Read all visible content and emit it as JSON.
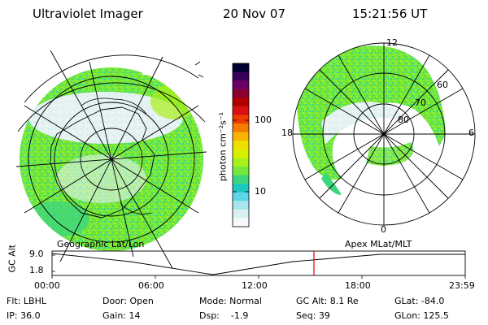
{
  "header": {
    "instrument": "Ultraviolet Imager",
    "date": "20 Nov 07",
    "time": "15:21:56 UT"
  },
  "colorbar": {
    "label": "photon cm⁻²s⁻¹",
    "ticks": [
      "100",
      "10"
    ],
    "colors": [
      "#000033",
      "#3a005a",
      "#6a0066",
      "#8a0033",
      "#b00000",
      "#d81010",
      "#ef3b00",
      "#f47c00",
      "#f8b400",
      "#f0df00",
      "#d8f000",
      "#a8f01a",
      "#74e83c",
      "#3ed67c",
      "#1ec8c2",
      "#5cd6e4",
      "#a6e6ee",
      "#d8f2f4",
      "#f4f8f8"
    ]
  },
  "panels": {
    "left_label": "Geographic Lat/Lon",
    "right_label": "Apex MLat/MLT",
    "right_mlt_labels": [
      "12",
      "18",
      "6",
      "0"
    ],
    "right_lat_labels": [
      "60",
      "70",
      "80"
    ]
  },
  "altitude_plot": {
    "axis_title": "GC Alt",
    "y_ticks": [
      "9.0",
      "1.8"
    ],
    "x_ticks": [
      "00:00",
      "06:00",
      "12:00",
      "18:00",
      "23:59"
    ],
    "marker_color": "#e00000"
  },
  "footer": {
    "flt": "Flt: LBHL",
    "ip": "IP: 36.0",
    "door": "Door: Open",
    "gain": "Gain: 14",
    "mode": "Mode: Normal",
    "dsp": "Dsp:    -1.9",
    "gcalt": "GC Alt: 8.1 Re",
    "seq": "Seq: 39",
    "glat": "GLat: -84.0",
    "glon": "GLon: 125.5"
  }
}
